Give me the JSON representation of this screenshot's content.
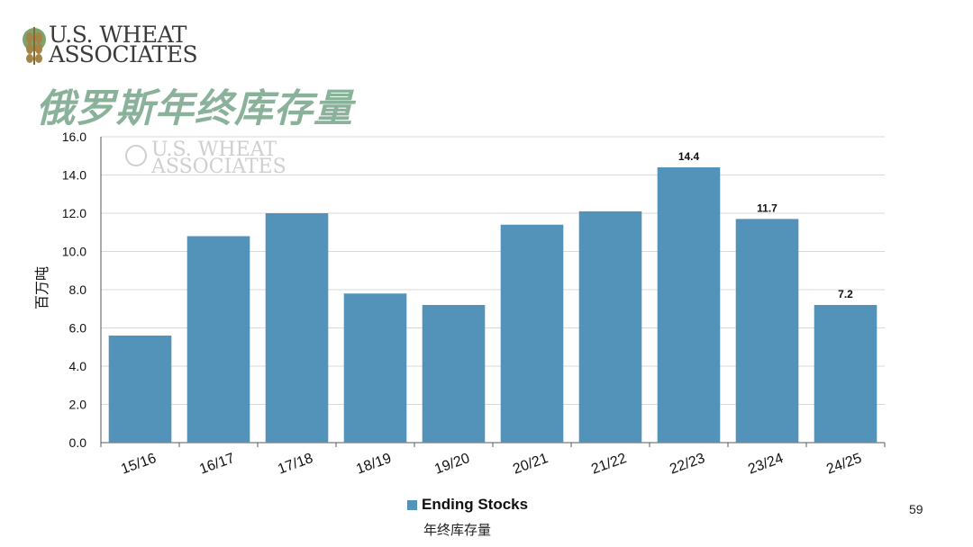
{
  "logo": {
    "line1": "U.S. WHEAT",
    "line2": "ASSOCIATES"
  },
  "watermark": {
    "line1": "U.S. WHEAT",
    "line2": "ASSOCIATES"
  },
  "slide_title": "俄罗斯年终库存量",
  "page_number": "59",
  "colors": {
    "bar": "#5493b9",
    "title": "#8ab19a",
    "grid": "#d9d9d9",
    "axis": "#595959"
  },
  "chart_data": {
    "type": "bar",
    "title": "",
    "categories": [
      "15/16",
      "16/17",
      "17/18",
      "18/19",
      "19/20",
      "20/21",
      "21/22",
      "22/23",
      "23/24",
      "24/25"
    ],
    "series": [
      {
        "name": "Ending Stocks",
        "values": [
          5.6,
          10.8,
          12.0,
          7.8,
          7.2,
          11.4,
          12.1,
          14.4,
          11.7,
          7.2
        ]
      }
    ],
    "data_labels": {
      "22/23": "14.4",
      "23/24": "11.7",
      "24/25": "7.2"
    },
    "ylabel": "百万吨",
    "xlabel": "年终库存量",
    "ylim": [
      0,
      16
    ],
    "yticks": [
      "0.0",
      "2.0",
      "4.0",
      "6.0",
      "8.0",
      "10.0",
      "12.0",
      "14.0",
      "16.0"
    ],
    "grid": true,
    "legend_position": "bottom"
  }
}
